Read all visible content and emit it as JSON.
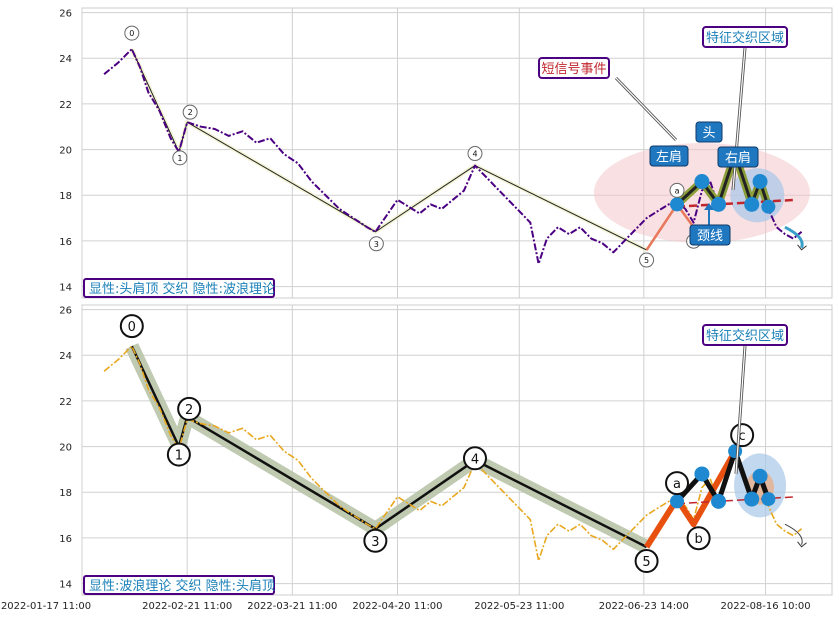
{
  "chart_data": [
    {
      "type": "line",
      "panel": "top",
      "ylim": [
        13.5,
        26.2
      ],
      "yticks": [
        14,
        16,
        18,
        20,
        22,
        24,
        26
      ],
      "grid": true,
      "colors": {
        "price": "#4b0082",
        "wave_line": "#222222",
        "wave_fill": "#f2f2d0",
        "hs_line": "#222222",
        "hs_fill": "#8a9e3a",
        "pink_zone": "#f4c6cc",
        "blue_zone": "#a8c8e8",
        "neckline": "#c0272d",
        "hs_points": "#1e88d0",
        "ab_line": "#e8785a"
      },
      "price_series": [
        [
          0,
          23.3
        ],
        [
          5,
          23.8
        ],
        [
          10,
          24.4
        ],
        [
          13,
          23.6
        ],
        [
          16,
          22.5
        ],
        [
          20,
          21.7
        ],
        [
          24,
          20.5
        ],
        [
          27,
          19.9
        ],
        [
          30,
          21.2
        ],
        [
          35,
          21.0
        ],
        [
          40,
          20.9
        ],
        [
          45,
          20.6
        ],
        [
          50,
          20.8
        ],
        [
          55,
          20.3
        ],
        [
          60,
          20.5
        ],
        [
          65,
          19.8
        ],
        [
          70,
          19.4
        ],
        [
          75,
          18.6
        ],
        [
          80,
          18.0
        ],
        [
          85,
          17.4
        ],
        [
          90,
          17.0
        ],
        [
          95,
          16.6
        ],
        [
          98,
          16.4
        ],
        [
          102,
          17.1
        ],
        [
          106,
          17.8
        ],
        [
          110,
          17.5
        ],
        [
          114,
          17.2
        ],
        [
          118,
          17.6
        ],
        [
          122,
          17.4
        ],
        [
          126,
          17.8
        ],
        [
          130,
          18.2
        ],
        [
          134,
          19.3
        ],
        [
          138,
          18.8
        ],
        [
          142,
          18.3
        ],
        [
          146,
          17.8
        ],
        [
          150,
          17.3
        ],
        [
          154,
          16.8
        ],
        [
          157,
          15.0
        ],
        [
          160,
          16.1
        ],
        [
          164,
          16.6
        ],
        [
          168,
          16.3
        ],
        [
          172,
          16.6
        ],
        [
          176,
          16.1
        ],
        [
          180,
          15.9
        ],
        [
          184,
          15.5
        ],
        [
          188,
          16.0
        ],
        [
          192,
          16.5
        ],
        [
          196,
          17.0
        ],
        [
          200,
          17.3
        ],
        [
          204,
          17.6
        ],
        [
          207,
          17.7
        ],
        [
          210,
          17.4
        ],
        [
          213,
          16.8
        ],
        [
          216,
          18.2
        ],
        [
          219,
          18.6
        ],
        [
          222,
          17.5
        ],
        [
          225,
          18.6
        ],
        [
          228,
          19.6
        ],
        [
          231,
          18.7
        ],
        [
          234,
          17.9
        ],
        [
          237,
          18.5
        ],
        [
          240,
          17.4
        ],
        [
          243,
          16.6
        ],
        [
          246,
          16.3
        ],
        [
          249,
          16.1
        ],
        [
          252,
          16.4
        ]
      ],
      "elliott_wave": {
        "points": [
          [
            10,
            24.4
          ],
          [
            27,
            19.9
          ],
          [
            30,
            21.2
          ],
          [
            98,
            16.4
          ],
          [
            134,
            19.3
          ],
          [
            196,
            15.6
          ]
        ],
        "labels": [
          "0",
          "1",
          "2",
          "3",
          "4",
          "5"
        ]
      },
      "ab_wave": {
        "points": [
          [
            196,
            15.6
          ],
          [
            207,
            17.6
          ],
          [
            213,
            16.6
          ]
        ],
        "labels": [
          "a",
          "b"
        ]
      },
      "head_shoulders": {
        "points": [
          [
            207,
            17.6
          ],
          [
            216,
            18.6
          ],
          [
            222,
            17.6
          ],
          [
            228,
            19.8
          ],
          [
            234,
            17.6
          ],
          [
            237,
            18.6
          ],
          [
            240,
            17.5
          ]
        ],
        "neckline": [
          [
            207,
            17.5
          ],
          [
            250,
            17.8
          ]
        ]
      },
      "arrow": {
        "from": [
          246,
          16.6
        ],
        "to": [
          252,
          15.7
        ]
      },
      "annotations": {
        "signal_event": "短信号事件",
        "feature_zone": "特征交织区域",
        "head": "头",
        "left_shoulder": "左肩",
        "right_shoulder": "右肩",
        "neckline": "颈线"
      },
      "caption": "显性:头肩顶 交织 隐性:波浪理论"
    },
    {
      "type": "line",
      "panel": "bottom",
      "ylim": [
        13.5,
        26.2
      ],
      "yticks": [
        14,
        16,
        18,
        20,
        22,
        24,
        26
      ],
      "grid": true,
      "colors": {
        "price": "#e8a820",
        "wave_line": "#111111",
        "wave_fill": "#b8c4a8",
        "c_line": "#e85010",
        "hs_line": "#111111",
        "hs_points": "#1e88d0",
        "blue_zone": "#a8c8e8",
        "orange_zone": "#e8b088",
        "neckline": "#c0272d"
      },
      "price_series": [
        [
          0,
          23.3
        ],
        [
          5,
          23.8
        ],
        [
          10,
          24.4
        ],
        [
          13,
          23.6
        ],
        [
          16,
          22.5
        ],
        [
          20,
          21.7
        ],
        [
          24,
          20.5
        ],
        [
          27,
          19.9
        ],
        [
          30,
          21.2
        ],
        [
          35,
          21.0
        ],
        [
          40,
          20.9
        ],
        [
          45,
          20.6
        ],
        [
          50,
          20.8
        ],
        [
          55,
          20.3
        ],
        [
          60,
          20.5
        ],
        [
          65,
          19.8
        ],
        [
          70,
          19.4
        ],
        [
          75,
          18.6
        ],
        [
          80,
          18.0
        ],
        [
          85,
          17.4
        ],
        [
          90,
          17.0
        ],
        [
          95,
          16.6
        ],
        [
          98,
          16.4
        ],
        [
          102,
          17.1
        ],
        [
          106,
          17.8
        ],
        [
          110,
          17.5
        ],
        [
          114,
          17.2
        ],
        [
          118,
          17.6
        ],
        [
          122,
          17.4
        ],
        [
          126,
          17.8
        ],
        [
          130,
          18.2
        ],
        [
          134,
          19.3
        ],
        [
          138,
          18.8
        ],
        [
          142,
          18.3
        ],
        [
          146,
          17.8
        ],
        [
          150,
          17.3
        ],
        [
          154,
          16.8
        ],
        [
          157,
          15.0
        ],
        [
          160,
          16.1
        ],
        [
          164,
          16.6
        ],
        [
          168,
          16.3
        ],
        [
          172,
          16.6
        ],
        [
          176,
          16.1
        ],
        [
          180,
          15.9
        ],
        [
          184,
          15.5
        ],
        [
          188,
          16.0
        ],
        [
          192,
          16.5
        ],
        [
          196,
          17.0
        ],
        [
          200,
          17.3
        ],
        [
          204,
          17.6
        ],
        [
          207,
          17.7
        ],
        [
          210,
          17.4
        ],
        [
          213,
          16.8
        ],
        [
          216,
          18.2
        ],
        [
          219,
          18.6
        ],
        [
          222,
          17.5
        ],
        [
          225,
          18.6
        ],
        [
          228,
          19.6
        ],
        [
          231,
          18.7
        ],
        [
          234,
          17.9
        ],
        [
          237,
          18.5
        ],
        [
          240,
          17.4
        ],
        [
          243,
          16.6
        ],
        [
          246,
          16.3
        ],
        [
          249,
          16.1
        ],
        [
          252,
          16.4
        ]
      ],
      "elliott_wave": {
        "points": [
          [
            10,
            24.4
          ],
          [
            27,
            20.0
          ],
          [
            30,
            21.3
          ],
          [
            98,
            16.4
          ],
          [
            134,
            19.4
          ],
          [
            196,
            15.6
          ]
        ],
        "labels": [
          "0",
          "1",
          "2",
          "3",
          "4",
          "5"
        ]
      },
      "abc_wave": {
        "points": [
          [
            196,
            15.6
          ],
          [
            207,
            17.7
          ],
          [
            213,
            16.6
          ],
          [
            228,
            19.8
          ]
        ],
        "labels": [
          "a",
          "b",
          "c"
        ]
      },
      "head_shoulders": {
        "points": [
          [
            207,
            17.6
          ],
          [
            216,
            18.8
          ],
          [
            222,
            17.6
          ],
          [
            228,
            19.8
          ],
          [
            234,
            17.7
          ],
          [
            237,
            18.7
          ],
          [
            240,
            17.7
          ]
        ],
        "neckline": [
          [
            207,
            17.5
          ],
          [
            250,
            17.8
          ]
        ]
      },
      "arrow": {
        "from": [
          246,
          16.6
        ],
        "to": [
          252,
          15.7
        ]
      },
      "annotations": {
        "feature_zone": "特征交织区域"
      },
      "caption": "显性:波浪理论 交织 隐性:头肩顶"
    }
  ],
  "x_axis": {
    "range": [
      -8,
      263
    ],
    "tick_positions": [
      -8,
      30,
      68,
      106,
      150,
      195,
      239
    ],
    "tick_labels": [
      "2022-01-17 11:00",
      "2022-02-21 11:00",
      "2022-03-21 11:00",
      "2022-04-20 11:00",
      "2022-05-23 11:00",
      "2022-06-23 14:00",
      "2022-08-16 10:00"
    ],
    "grid_positions": [
      -8,
      30,
      68,
      106,
      150,
      195,
      239
    ]
  }
}
